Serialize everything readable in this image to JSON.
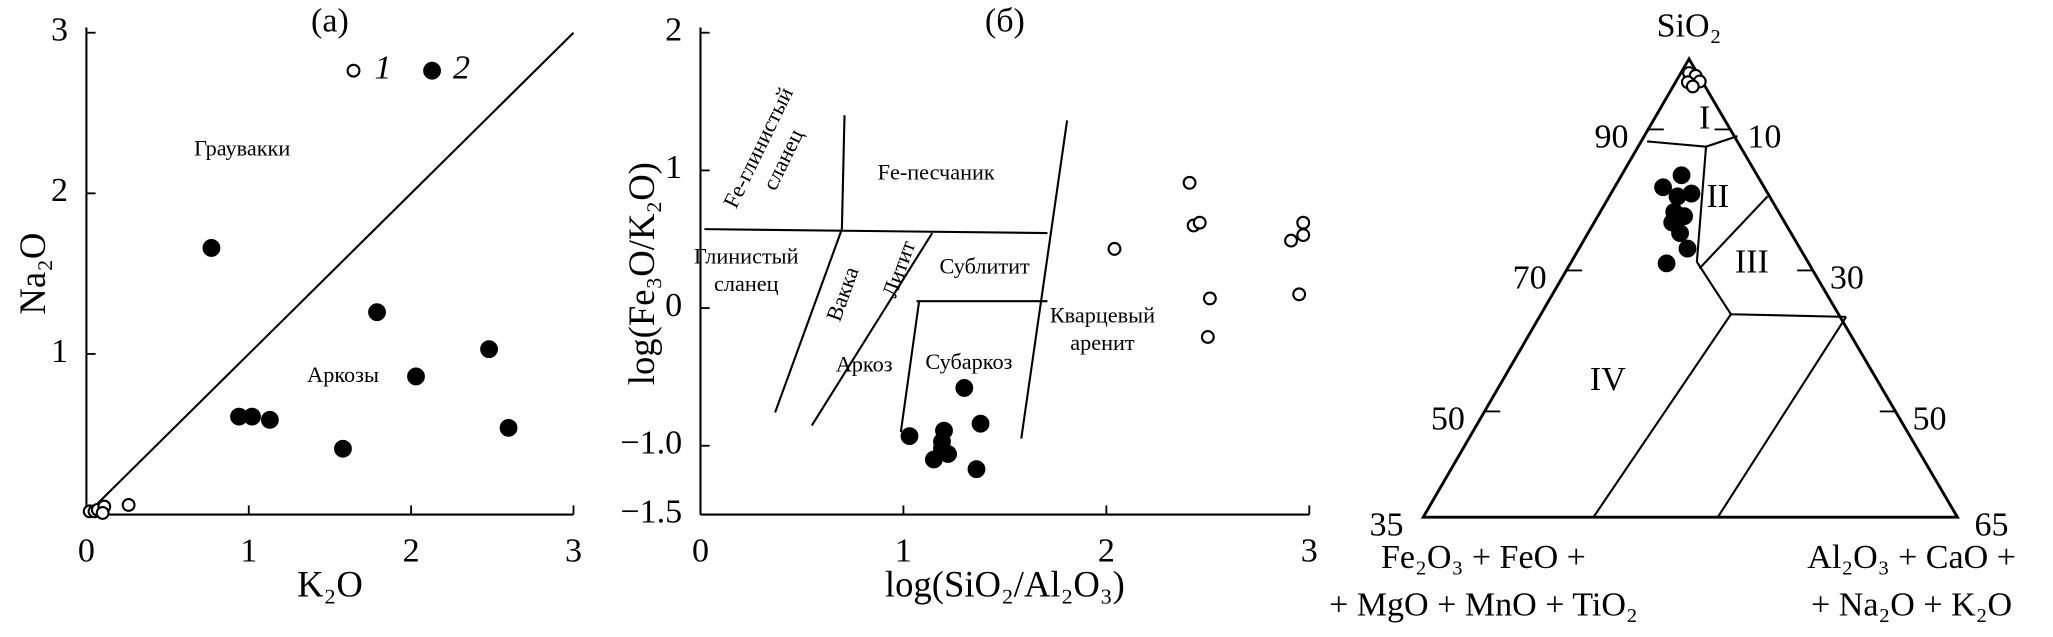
{
  "chart_data": [
    {
      "type": "scatter",
      "title": "(а)",
      "x_label": "K₂O",
      "y_label": "Na₂O",
      "xlim": [
        0,
        3
      ],
      "ylim": [
        0,
        3
      ],
      "xticks": [
        0,
        1,
        2,
        3
      ],
      "yticks": [
        1,
        2,
        3
      ],
      "annotations": [
        [
          "Граувакки"
        ],
        [
          "Аркозы"
        ]
      ],
      "series": [
        {
          "name": "1",
          "marker": "open",
          "color": "#000000",
          "x": [
            0.02,
            0.05,
            0.07,
            0.11,
            0.1,
            0.26
          ],
          "values": [
            0.02,
            0.02,
            0.03,
            0.05,
            0.01,
            0.06
          ]
        },
        {
          "name": "2",
          "marker": "filled",
          "color": "#000000",
          "x": [
            0.77,
            1.79,
            0.94,
            1.02,
            1.13,
            2.03,
            2.48,
            2.6,
            1.58
          ],
          "values": [
            1.66,
            1.26,
            0.61,
            0.61,
            0.59,
            0.86,
            1.03,
            0.54,
            0.41
          ]
        }
      ]
    },
    {
      "type": "scatter",
      "title": "(б)",
      "x_label": "log(SiO₂/Al₂O₃)",
      "y_label": "log(Fe₃O/K₂O)",
      "xlim": [
        0,
        3
      ],
      "ylim": [
        -1.5,
        2
      ],
      "xticks": [
        0,
        1,
        2,
        3
      ],
      "yticks": [
        {
          "value": -1.5,
          "label": "−1.5"
        },
        {
          "value": -1,
          "label": "−1.0"
        },
        0,
        1,
        2
      ],
      "annotations": [
        [
          "Fe-глинистый",
          "сланец"
        ],
        [
          "Fe-песчаник"
        ],
        [
          "Глинистый",
          "сланец"
        ],
        [
          "Вакка"
        ],
        [
          "Литит"
        ],
        [
          "Сублитит"
        ],
        [
          "Кварцевый",
          "аренит"
        ],
        [
          "Аркоз"
        ],
        [
          "Субаркоз"
        ]
      ],
      "series": [
        {
          "marker": "open",
          "color": "#000000",
          "x": [
            2.04,
            2.41,
            2.43,
            2.46,
            2.51,
            2.5,
            2.91,
            2.97,
            2.97,
            2.95
          ],
          "values": [
            0.43,
            0.91,
            0.6,
            0.62,
            0.07,
            -0.21,
            0.49,
            0.62,
            0.53,
            0.1
          ]
        },
        {
          "marker": "filled",
          "color": "#000000",
          "x": [
            1.03,
            1.2,
            1.19,
            1.22,
            1.15,
            1.3,
            1.38,
            1.36,
            1.19
          ],
          "values": [
            -0.93,
            -0.89,
            -1.02,
            -1.06,
            -1.1,
            -0.58,
            -0.84,
            -1.17,
            -0.97
          ]
        }
      ]
    },
    {
      "type": "ternary",
      "apex_label": "SiO₂",
      "left_label": [
        "Fe₂O₃ + FeO +",
        "+ MgO + MnO + TiO₂"
      ],
      "right_label": [
        "Al₂O₃ + CaO +",
        "+ Na₂O + K₂O"
      ],
      "left_lim": [
        100,
        35
      ],
      "left_ticks": [
        90,
        70,
        50,
        35
      ],
      "right_lim": [
        0,
        65
      ],
      "right_ticks": [
        10,
        30,
        50,
        65
      ],
      "regions": [
        "I",
        "II",
        "III",
        "IV"
      ],
      "series": [
        {
          "marker": "open",
          "color": "#000000",
          "values": [
            98.0,
            97.6,
            96.8,
            96.7,
            96.1
          ],
          "x": [
            1.0,
            2.0,
            2.9,
            1.5,
            2.4
          ]
        },
        {
          "marker": "filled",
          "color": "#000000",
          "values": [
            81.8,
            83.5,
            80.5,
            80.9,
            78.3,
            77.7,
            76.8,
            75.3,
            73.1,
            71.0
          ],
          "x": [
            5.9,
            7.3,
            8.3,
            9.8,
            9.0,
            10.5,
            9.5,
            11.2,
            13.2,
            11.7
          ]
        }
      ]
    }
  ]
}
